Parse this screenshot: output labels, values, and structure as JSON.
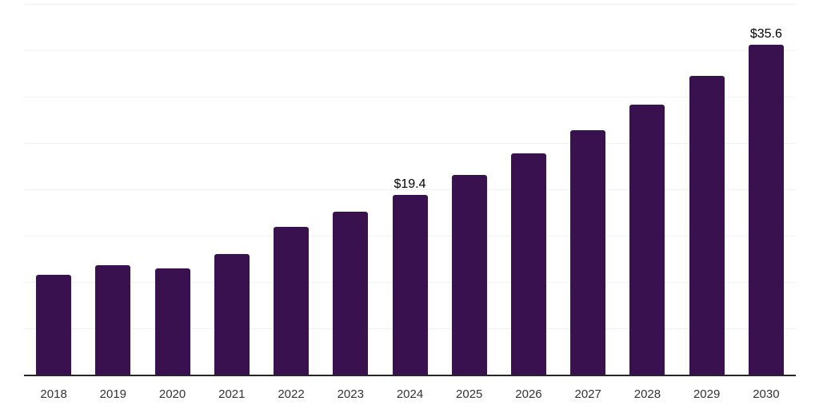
{
  "chart_data": {
    "type": "bar",
    "title": "",
    "xlabel": "",
    "ylabel": "",
    "categories": [
      "2018",
      "2019",
      "2020",
      "2021",
      "2022",
      "2023",
      "2024",
      "2025",
      "2026",
      "2027",
      "2028",
      "2029",
      "2030"
    ],
    "values": [
      10.8,
      11.9,
      11.5,
      13.1,
      16.0,
      17.6,
      19.4,
      21.6,
      23.9,
      26.4,
      29.2,
      32.3,
      35.6
    ],
    "data_labels": {
      "2024": "$19.4",
      "2030": "$35.6"
    },
    "ylim": [
      0,
      40
    ],
    "gridline_step": 5,
    "grid": true,
    "legend": false,
    "y_tick_labels_visible": false,
    "colors": {
      "bar": "#3A114F",
      "gridline": "#f2f2f2",
      "axis_line": "#262626",
      "x_label": "#333333",
      "data_label": "#000000",
      "background": "#ffffff"
    }
  }
}
